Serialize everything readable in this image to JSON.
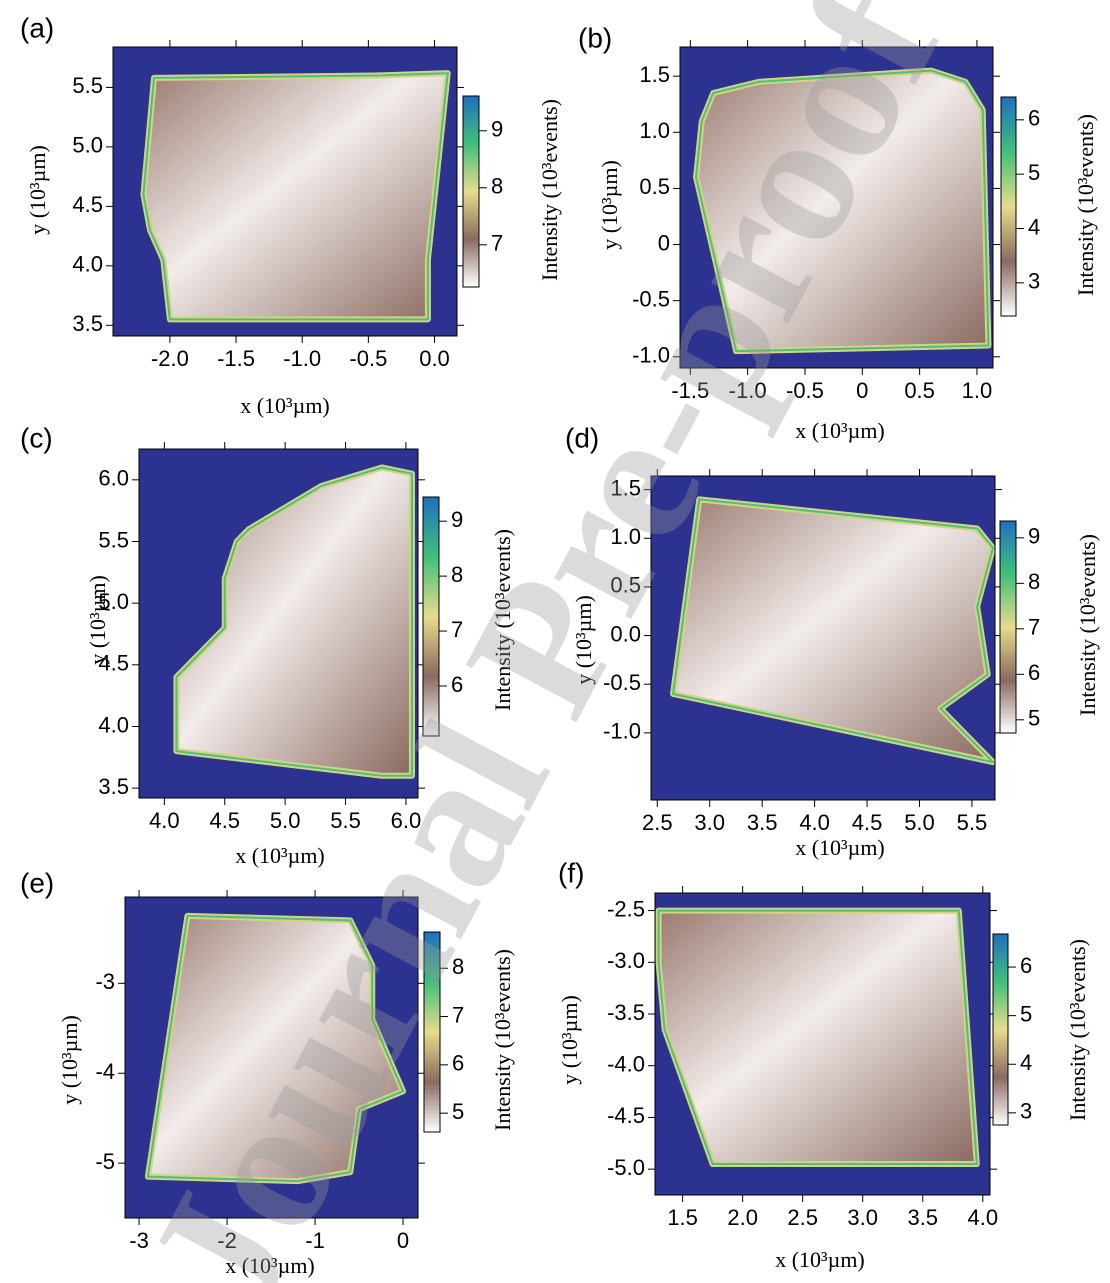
{
  "watermark": "Journal Pre-proof",
  "colormap": [
    "#ffffff",
    "#8a6a60",
    "#e6dc8c",
    "#40c07a",
    "#1f6fc0"
  ],
  "background": "#2b3290",
  "chart_data": [
    {
      "type": "heatmap",
      "panel": "(a)",
      "xlabel": "x (10³µm)",
      "ylabel": "y (10³µm)",
      "colorbar_label": "Intensity (10³events)",
      "xlim": [
        -2.43,
        0.17
      ],
      "ylim": [
        3.41,
        5.84
      ],
      "xticks": [
        {
          "value": -2,
          "label": "-2.0"
        },
        -1.5,
        {
          "value": -1,
          "label": "-1.0"
        },
        -0.5,
        {
          "value": 0,
          "label": "0.0"
        }
      ],
      "yticks": [
        3.5,
        {
          "value": 4,
          "label": "4.0"
        },
        4.5,
        {
          "value": 5,
          "label": "5.0"
        },
        5.5
      ],
      "clim": [
        6.26,
        9.61
      ],
      "cticks": [
        7,
        8,
        9
      ],
      "outline_x": [
        -2.12,
        -0.45,
        0.1,
        -0.05,
        -0.05,
        -2.0,
        -2.05,
        -2.15,
        -2.2
      ],
      "outline_y": [
        5.58,
        5.6,
        5.62,
        4.05,
        3.55,
        3.55,
        4.05,
        4.3,
        4.6
      ]
    },
    {
      "type": "heatmap",
      "panel": "(b)",
      "xlabel": "x (10³µm)",
      "ylabel": "y (10³µm)",
      "colorbar_label": "Intensity (10³events)",
      "xlim": [
        -1.59,
        1.14
      ],
      "ylim": [
        -1.1,
        1.76
      ],
      "xticks": [
        -1.5,
        {
          "value": -1,
          "label": "-1.0"
        },
        -0.5,
        0,
        0.5,
        {
          "value": 1,
          "label": "1.0"
        }
      ],
      "yticks": [
        {
          "value": -1,
          "label": "-1.0"
        },
        -0.5,
        0,
        0.5,
        {
          "value": 1,
          "label": "1.0"
        },
        1.5
      ],
      "clim": [
        2.39,
        6.42
      ],
      "cticks": [
        3,
        4,
        5,
        6
      ],
      "outline_x": [
        -1.3,
        -0.9,
        0.6,
        0.9,
        1.05,
        1.1,
        -1.1,
        -1.45,
        -1.4
      ],
      "outline_y": [
        1.35,
        1.45,
        1.55,
        1.45,
        1.2,
        -0.9,
        -0.95,
        0.6,
        1.1
      ]
    },
    {
      "type": "heatmap",
      "panel": "(c)",
      "xlabel": "x (10³µm)",
      "ylabel": "y (10³µm)",
      "colorbar_label": "Intensity (10³events)",
      "xlim": [
        3.79,
        6.1
      ],
      "ylim": [
        3.42,
        6.25
      ],
      "xticks": [
        {
          "value": 4,
          "label": "4.0"
        },
        4.5,
        {
          "value": 5,
          "label": "5.0"
        },
        5.5,
        {
          "value": 6,
          "label": "6.0"
        }
      ],
      "yticks": [
        3.5,
        {
          "value": 4,
          "label": "4.0"
        },
        4.5,
        {
          "value": 5,
          "label": "5.0"
        },
        5.5,
        {
          "value": 6,
          "label": "6.0"
        }
      ],
      "clim": [
        5.09,
        9.44
      ],
      "cticks": [
        6,
        7,
        8,
        9
      ],
      "outline_x": [
        4.7,
        5.3,
        5.8,
        6.05,
        6.05,
        5.8,
        4.1,
        4.1,
        4.5,
        4.5,
        4.6
      ],
      "outline_y": [
        5.6,
        5.95,
        6.1,
        6.05,
        3.6,
        3.6,
        3.8,
        4.4,
        4.8,
        5.2,
        5.5
      ]
    },
    {
      "type": "heatmap",
      "panel": "(d)",
      "xlabel": "x (10³µm)",
      "ylabel": "y (10³µm)",
      "colorbar_label": "Intensity (10³events)",
      "xlim": [
        2.44,
        5.72
      ],
      "ylim": [
        -1.69,
        1.64
      ],
      "xticks": [
        2.5,
        {
          "value": 3,
          "label": "3.0"
        },
        3.5,
        {
          "value": 4,
          "label": "4.0"
        },
        4.5,
        {
          "value": 5,
          "label": "5.0"
        },
        5.5
      ],
      "yticks": [
        {
          "value": -1,
          "label": "-1.0"
        },
        -0.5,
        {
          "value": 0,
          "label": "0.0"
        },
        0.5,
        {
          "value": 1,
          "label": "1.0"
        },
        1.5
      ],
      "clim": [
        4.71,
        9.37
      ],
      "cticks": [
        5,
        6,
        7,
        8,
        9
      ],
      "outline_x": [
        2.9,
        5.55,
        5.7,
        5.55,
        5.65,
        5.2,
        5.7,
        2.65,
        2.75
      ],
      "outline_y": [
        1.4,
        1.1,
        0.9,
        0.3,
        -0.4,
        -0.75,
        -1.3,
        -0.6,
        0.2
      ]
    },
    {
      "type": "heatmap",
      "panel": "(e)",
      "xlabel": "x (10³µm)",
      "ylabel": "y (10³µm)",
      "colorbar_label": "Intensity (10³events)",
      "xlim": [
        -3.16,
        0.17
      ],
      "ylim": [
        -5.61,
        -2.04
      ],
      "xticks": [
        -3,
        -2,
        -1,
        0
      ],
      "yticks": [
        -5,
        -4,
        -3
      ],
      "clim": [
        4.61,
        8.75
      ],
      "cticks": [
        5,
        6,
        7,
        8
      ],
      "outline_x": [
        -2.45,
        -0.6,
        -0.35,
        -0.35,
        0,
        -0.5,
        -0.6,
        -1.2,
        -2.9
      ],
      "outline_y": [
        -2.25,
        -2.3,
        -2.8,
        -3.4,
        -4.2,
        -4.4,
        -5.1,
        -5.2,
        -5.15
      ]
    },
    {
      "type": "heatmap",
      "panel": "(f)",
      "xlabel": "x (10³µm)",
      "ylabel": "y (10³µm)",
      "colorbar_label": "Intensity (10³events)",
      "xlim": [
        1.27,
        4.06
      ],
      "ylim": [
        -5.25,
        -2.33
      ],
      "xticks": [
        1.5,
        {
          "value": 2,
          "label": "2.0"
        },
        2.5,
        {
          "value": 3,
          "label": "3.0"
        },
        3.5,
        {
          "value": 4,
          "label": "4.0"
        }
      ],
      "yticks": [
        {
          "value": -5,
          "label": "-5.0"
        },
        -4.5,
        {
          "value": -4,
          "label": "-4.0"
        },
        -3.5,
        {
          "value": -3,
          "label": "-3.0"
        },
        -2.5
      ],
      "clim": [
        2.75,
        6.68
      ],
      "cticks": [
        3,
        4,
        5,
        6
      ],
      "outline_x": [
        1.3,
        3.8,
        3.95,
        1.75,
        1.35,
        1.3
      ],
      "outline_y": [
        -2.5,
        -2.5,
        -4.95,
        -4.95,
        -3.65,
        -3.0
      ]
    }
  ]
}
